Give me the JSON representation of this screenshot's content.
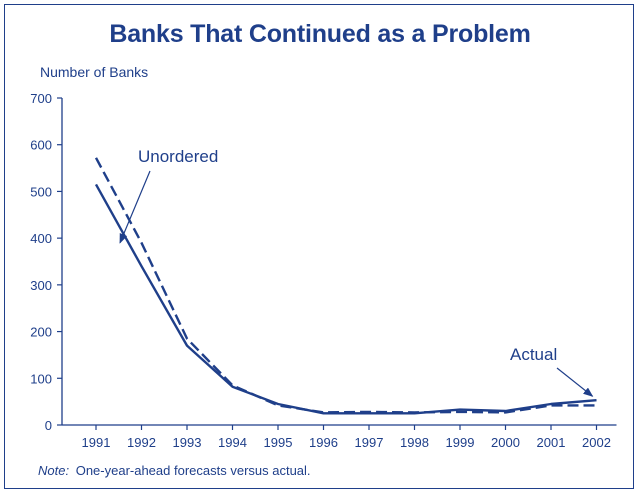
{
  "chart_data": {
    "type": "line",
    "title": "Banks That Continued as a Problem",
    "ylabel": "Number of Banks",
    "xlabel": "",
    "ylim": [
      0,
      700
    ],
    "yticks": [
      0,
      100,
      200,
      300,
      400,
      500,
      600,
      700
    ],
    "x": [
      "1991",
      "1992",
      "1993",
      "1994",
      "1995",
      "1996",
      "1997",
      "1998",
      "1999",
      "2000",
      "2001",
      "2002"
    ],
    "series": [
      {
        "name": "Actual",
        "style": "solid",
        "values": [
          515,
          340,
          170,
          82,
          45,
          25,
          25,
          25,
          33,
          30,
          45,
          53
        ]
      },
      {
        "name": "Unordered",
        "style": "dashed",
        "values": [
          572,
          390,
          185,
          85,
          42,
          27,
          28,
          27,
          28,
          27,
          42,
          42
        ]
      }
    ],
    "annotations": [
      {
        "text": "Unordered",
        "series": "Unordered"
      },
      {
        "text": "Actual",
        "series": "Actual"
      }
    ],
    "grid": false,
    "line_color": "#1f3f8a"
  },
  "note": {
    "label": "Note:",
    "text": "One-year-ahead forecasts versus actual."
  },
  "colors": {
    "accent": "#1f3f8a",
    "frame": "#1f3f8a",
    "background": "#ffffff"
  }
}
